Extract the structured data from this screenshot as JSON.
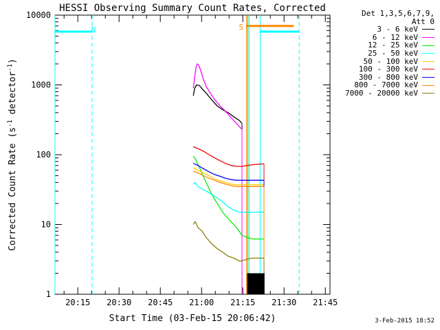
{
  "chart_data": {
    "type": "line",
    "title": "HESSI Observing Summary Count Rates, Corrected",
    "xlabel": "Start Time (03-Feb-15 20:06:42)",
    "ylabel_prefix": "Corrected Count Rate (s",
    "ylabel_sup1": "-1",
    "ylabel_mid": " detector",
    "ylabel_sup2": "-1",
    "ylabel_suffix": ")",
    "yscale": "log",
    "ylim": [
      1,
      10000
    ],
    "xlim_minutes": [
      0,
      100
    ],
    "x_ticks": [
      {
        "label": "20:15",
        "min": 8.3
      },
      {
        "label": "20:30",
        "min": 23.3
      },
      {
        "label": "20:45",
        "min": 38.3
      },
      {
        "label": "21:00",
        "min": 53.3
      },
      {
        "label": "21:15",
        "min": 68.3
      },
      {
        "label": "21:30",
        "min": 83.3
      },
      {
        "label": "21:45",
        "min": 98.3
      }
    ],
    "y_ticks": [
      {
        "label": "1",
        "v": 1
      },
      {
        "label": "10",
        "v": 10
      },
      {
        "label": "100",
        "v": 100
      },
      {
        "label": "1000",
        "v": 1000
      },
      {
        "label": "10000",
        "v": 10000
      }
    ],
    "legend_header": [
      "Det 1,3,5,6,7,9,",
      "Att 0"
    ],
    "series": [
      {
        "name": "3 - 6 keV",
        "color": "#000000",
        "x": [
          50.3,
          50.8,
          51.5,
          52.5,
          53.5,
          55.0,
          57.0,
          59.0,
          61.0,
          63.0,
          65.0,
          67.0,
          68.0
        ],
        "y": [
          700,
          900,
          1000,
          980,
          880,
          760,
          610,
          500,
          440,
          400,
          350,
          310,
          280
        ]
      },
      {
        "name": "6 - 12 keV",
        "color": "#ff00ff",
        "x": [
          50.3,
          50.8,
          51.3,
          51.8,
          52.3,
          53.0,
          54.0,
          55.0,
          56.5,
          58.0,
          60.0,
          62.0,
          64.0,
          66.0,
          68.0
        ],
        "y": [
          900,
          1300,
          1800,
          2000,
          1900,
          1600,
          1200,
          950,
          760,
          620,
          500,
          420,
          340,
          280,
          230
        ]
      },
      {
        "name": "12 - 25 keV",
        "color": "#00ee00",
        "x": [
          50.3,
          51.0,
          52.0,
          53.0,
          54.0,
          55.5,
          57.0,
          59.0,
          61.0,
          63.0,
          65.0,
          67.0,
          68.0,
          70.0,
          72.0,
          74.0,
          76.0
        ],
        "y": [
          95,
          88,
          72,
          60,
          48,
          36,
          27,
          20,
          15,
          12,
          10,
          8,
          7,
          6.5,
          6.2,
          6.2,
          6.2
        ]
      },
      {
        "name": "25 - 50 keV",
        "color": "#00ffff",
        "x": [
          50.3,
          51.0,
          52.0,
          53.5,
          55.0,
          57.0,
          59.0,
          61.0,
          63.0,
          65.0,
          67.0,
          68.0,
          70.0,
          72.0,
          74.0,
          76.0
        ],
        "y": [
          38,
          40,
          35,
          32,
          30,
          27,
          24,
          21,
          18,
          16,
          15,
          15,
          15,
          15,
          15,
          15
        ]
      },
      {
        "name": "50 - 100 keV",
        "color": "#ffcc00",
        "x": [
          50.3,
          52.0,
          54.0,
          56.0,
          58.0,
          60.0,
          62.0,
          64.0,
          66.0,
          68.0,
          70.0,
          72.0,
          74.0,
          76.0
        ],
        "y": [
          65,
          60,
          55,
          50,
          45,
          42,
          40,
          38,
          37,
          37,
          37,
          37,
          37,
          37
        ]
      },
      {
        "name": "100 - 300 keV",
        "color": "#ee0000",
        "x": [
          50.3,
          52.0,
          54.0,
          56.0,
          58.0,
          60.0,
          62.0,
          64.0,
          66.0,
          68.0,
          70.0,
          72.0,
          74.0,
          76.0
        ],
        "y": [
          130,
          122,
          112,
          100,
          90,
          82,
          75,
          70,
          68,
          68,
          70,
          72,
          73,
          74
        ]
      },
      {
        "name": "300 - 800 keV",
        "color": "#0000ee",
        "x": [
          50.3,
          52.0,
          54.0,
          56.0,
          58.0,
          60.0,
          62.0,
          64.0,
          66.0,
          68.0,
          70.0,
          72.0,
          74.0,
          76.0
        ],
        "y": [
          75,
          70,
          63,
          57,
          52,
          49,
          46,
          44,
          43,
          43,
          43,
          43,
          43,
          43
        ]
      },
      {
        "name": "800 - 7000 keV",
        "color": "#ff8800",
        "x": [
          50.3,
          52.0,
          54.0,
          56.0,
          58.0,
          60.0,
          62.0,
          64.0,
          66.0,
          68.0,
          70.0,
          72.0,
          74.0,
          76.0
        ],
        "y": [
          58,
          55,
          50,
          46,
          43,
          40,
          38,
          36,
          35,
          35,
          35,
          35,
          35,
          35
        ]
      },
      {
        "name": "7000 - 20000 keV",
        "color": "#8b7d00",
        "x": [
          50.3,
          51.0,
          52.0,
          53.5,
          55.0,
          57.0,
          59.0,
          61.0,
          63.0,
          65.0,
          67.0,
          68.0,
          70.0,
          72.0,
          74.0,
          76.0
        ],
        "y": [
          10,
          11,
          9,
          8,
          6.5,
          5.3,
          4.5,
          4.0,
          3.5,
          3.3,
          3.0,
          3.0,
          3.2,
          3.3,
          3.3,
          3.3
        ]
      }
    ],
    "annotations": [
      {
        "text": "N",
        "color": "#00ffff",
        "min": 14.0,
        "v": 6200
      },
      {
        "text": "S",
        "color": "#ff8800",
        "min": 67.7,
        "v": 6800
      }
    ],
    "night_level_cyan": 5800,
    "saa_level_orange": 7000,
    "night_intervals": [
      [
        0,
        13.5
      ],
      [
        74.6,
        88.8
      ]
    ],
    "saa_interval": [
      69.6,
      86.8
    ]
  },
  "footer": {
    "timestamp": "3-Feb-2015 18:52"
  }
}
